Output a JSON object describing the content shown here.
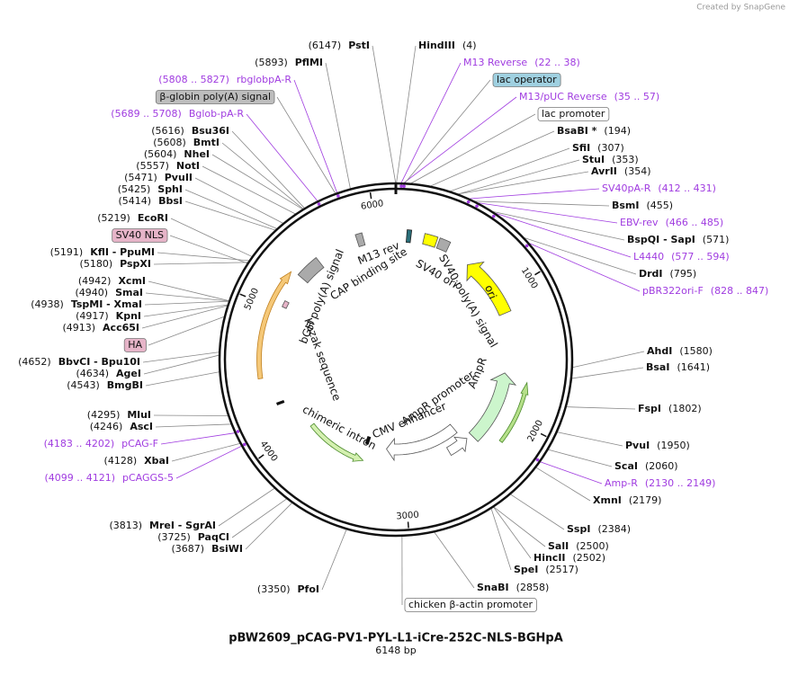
{
  "credit": "Created by SnapGene",
  "title": "pBW2609_pCAG-PV1-PYL-L1-iCre-252C-NLS-BGHpA",
  "size": "6148 bp",
  "enzymes": [
    {
      "name": "HindIII",
      "pos": "(4)"
    },
    {
      "name": "BsaBI *",
      "pos": "(194)"
    },
    {
      "name": "SfiI",
      "pos": "(307)"
    },
    {
      "name": "StuI",
      "pos": "(353)"
    },
    {
      "name": "AvrII",
      "pos": "(354)"
    },
    {
      "name": "BsmI",
      "pos": "(455)"
    },
    {
      "name": "BspQI - SapI",
      "pos": "(571)"
    },
    {
      "name": "DrdI",
      "pos": "(795)"
    },
    {
      "name": "AhdI",
      "pos": "(1580)"
    },
    {
      "name": "BsaI",
      "pos": "(1641)"
    },
    {
      "name": "FspI",
      "pos": "(1802)"
    },
    {
      "name": "PvuI",
      "pos": "(1950)"
    },
    {
      "name": "ScaI",
      "pos": "(2060)"
    },
    {
      "name": "XmnI",
      "pos": "(2179)"
    },
    {
      "name": "SspI",
      "pos": "(2384)"
    },
    {
      "name": "SalI",
      "pos": "(2500)"
    },
    {
      "name": "HincII",
      "pos": "(2502)"
    },
    {
      "name": "SpeI",
      "pos": "(2517)"
    },
    {
      "name": "SnaBI",
      "pos": "(2858)"
    },
    {
      "name": "PfoI",
      "pos": "(3350)"
    },
    {
      "name": "BsiWI",
      "pos": "(3687)"
    },
    {
      "name": "PaqCI",
      "pos": "(3725)"
    },
    {
      "name": "MreI - SgrAI",
      "pos": "(3813)"
    },
    {
      "name": "XbaI",
      "pos": "(4128)"
    },
    {
      "name": "AscI",
      "pos": "(4246)"
    },
    {
      "name": "MluI",
      "pos": "(4295)"
    },
    {
      "name": "BmgBI",
      "pos": "(4543)"
    },
    {
      "name": "AgeI",
      "pos": "(4634)"
    },
    {
      "name": "BbvCI - Bpu10I",
      "pos": "(4652)"
    },
    {
      "name": "Acc65I",
      "pos": "(4913)"
    },
    {
      "name": "KpnI",
      "pos": "(4917)"
    },
    {
      "name": "TspMI - XmaI",
      "pos": "(4938)"
    },
    {
      "name": "SmaI",
      "pos": "(4940)"
    },
    {
      "name": "XcmI",
      "pos": "(4942)"
    },
    {
      "name": "PspXI",
      "pos": "(5180)"
    },
    {
      "name": "KflI - PpuMI",
      "pos": "(5191)"
    },
    {
      "name": "EcoRI",
      "pos": "(5219)"
    },
    {
      "name": "BbsI",
      "pos": "(5414)"
    },
    {
      "name": "SphI",
      "pos": "(5425)"
    },
    {
      "name": "PvuII",
      "pos": "(5471)"
    },
    {
      "name": "NotI",
      "pos": "(5557)"
    },
    {
      "name": "NheI",
      "pos": "(5604)"
    },
    {
      "name": "BmtI",
      "pos": "(5608)"
    },
    {
      "name": "Bsu36I",
      "pos": "(5616)"
    },
    {
      "name": "PflMI",
      "pos": "(5893)"
    },
    {
      "name": "PstI",
      "pos": "(6147)"
    }
  ],
  "primers": [
    {
      "name": "M13 Reverse",
      "range": "(22 .. 38)"
    },
    {
      "name": "M13/pUC Reverse",
      "range": "(35 .. 57)"
    },
    {
      "name": "SV40pA-R",
      "range": "(412 .. 431)"
    },
    {
      "name": "EBV-rev",
      "range": "(466 .. 485)"
    },
    {
      "name": "L4440",
      "range": "(577 .. 594)"
    },
    {
      "name": "pBR322ori-F",
      "range": "(828 .. 847)"
    },
    {
      "name": "Amp-R",
      "range": "(2130 .. 2149)"
    },
    {
      "name": "pCAGGS-5",
      "range": "(4099 .. 4121)"
    },
    {
      "name": "pCAG-F",
      "range": "(4183 .. 4202)"
    },
    {
      "name": "Bglob-pA-R",
      "range": "(5689 .. 5708)"
    },
    {
      "name": "rbglobpA-R",
      "range": "(5808 .. 5827)"
    }
  ],
  "boxed_features": [
    "lac operator",
    "lac promoter",
    "chicken β-actin promoter",
    "HA",
    "SV40 NLS",
    "β-globin poly(A) signal"
  ],
  "map_features": [
    "M13 rev",
    "CAP binding site",
    "SV40 ori",
    "SV40 poly(A) signal",
    "ori",
    "AmpR",
    "AmpR promoter",
    "CMV enhancer",
    "chimeric intron",
    "Kozak sequence",
    "bGH poly(A) signal"
  ],
  "ring_ticks": [
    "1000",
    "2000",
    "3000",
    "4000",
    "5000",
    "6000"
  ]
}
